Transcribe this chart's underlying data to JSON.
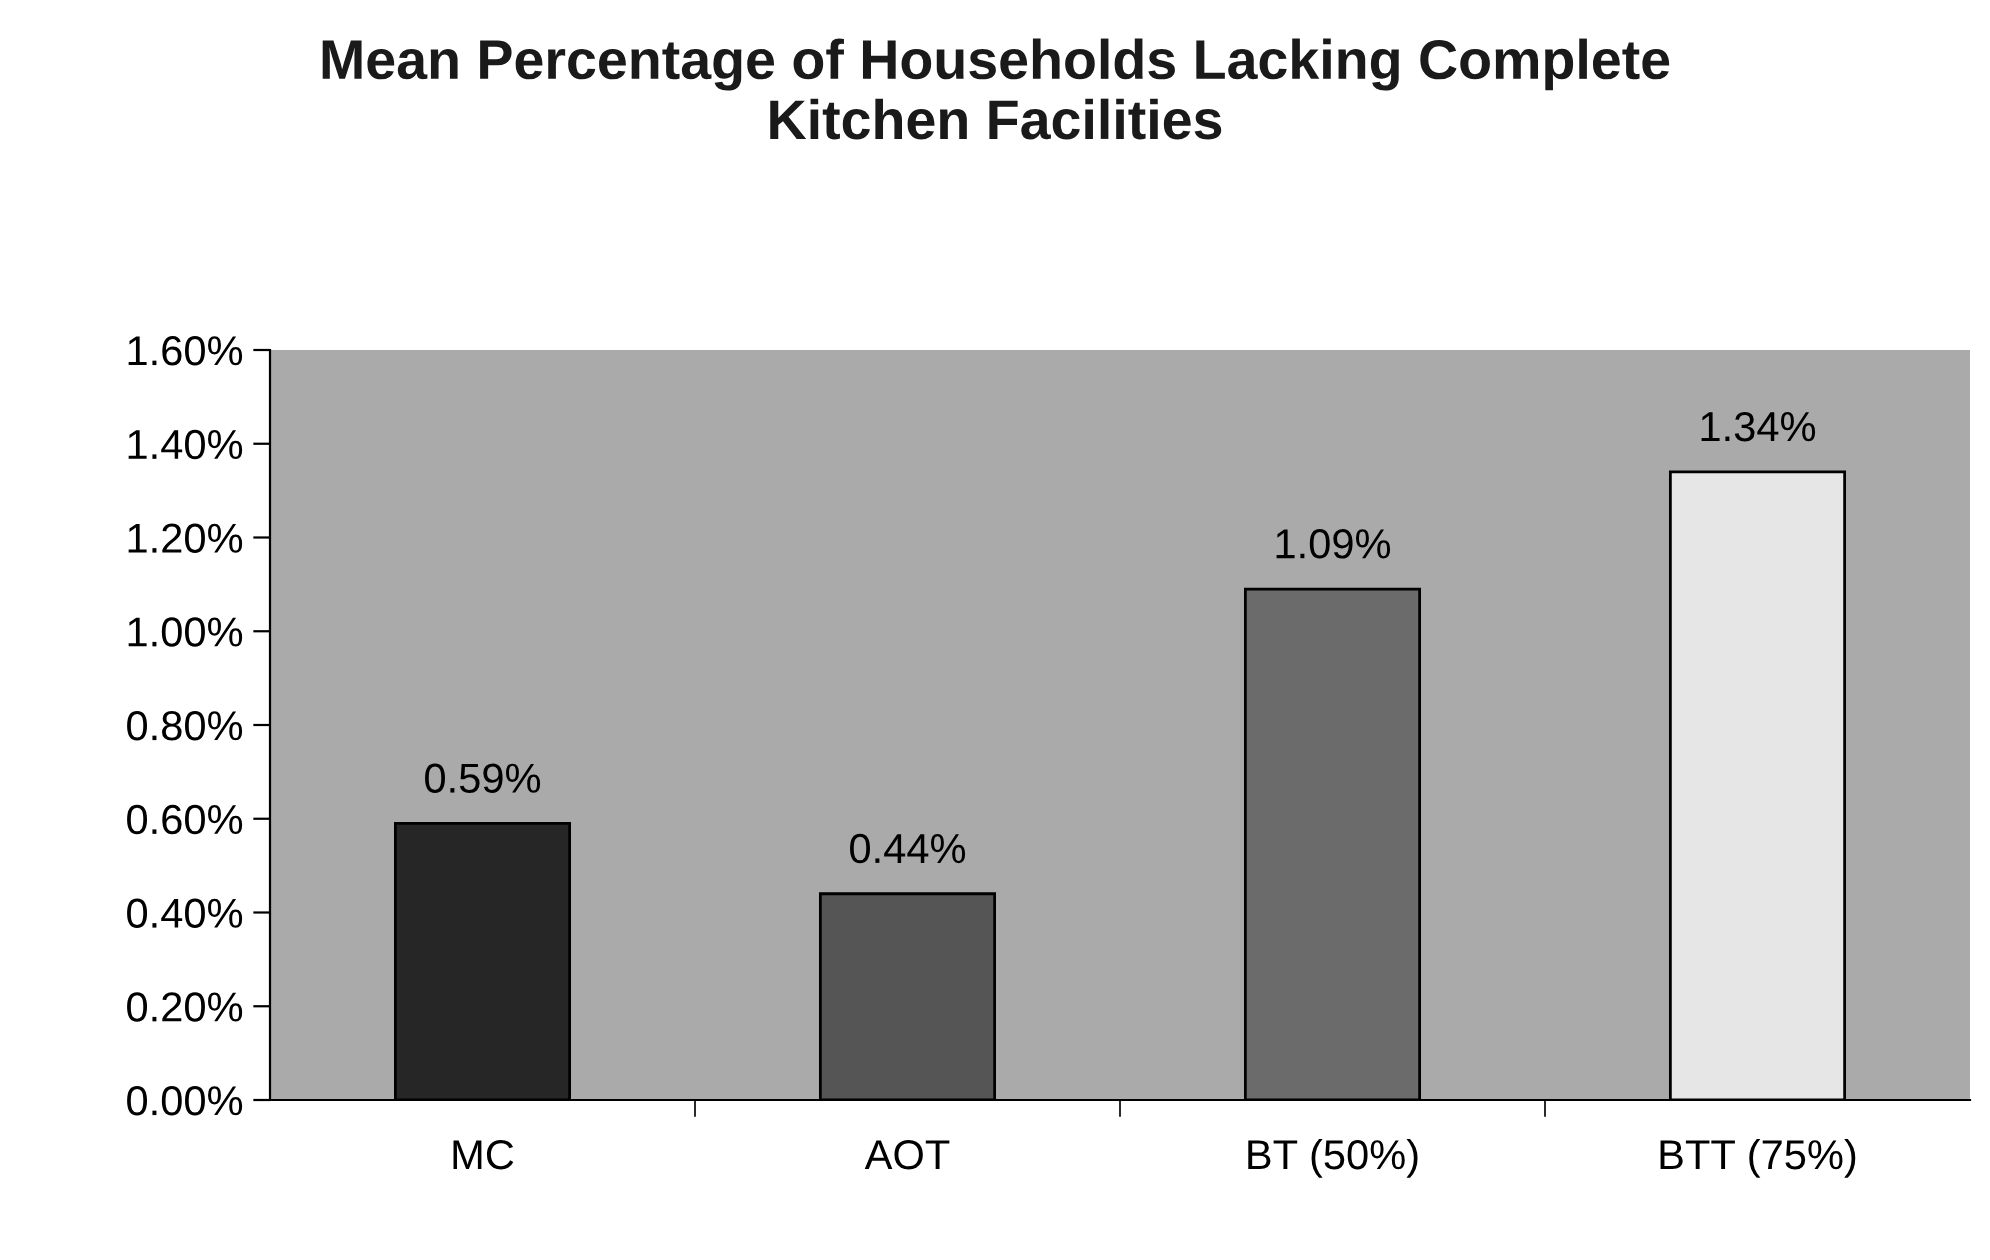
{
  "chart_data": {
    "type": "bar",
    "title": "Mean Percentage of Households Lacking Complete\nKitchen Facilities",
    "categories": [
      "MC",
      "AOT",
      "BT (50%)",
      "BTT (75%)"
    ],
    "values": [
      0.59,
      0.44,
      1.09,
      1.34
    ],
    "colors": [
      "#262626",
      "#555555",
      "#6b6b6b",
      "#e6e6e6"
    ],
    "value_labels": [
      "0.59%",
      "0.44%",
      "1.09%",
      "1.34%"
    ],
    "ylim": [
      0,
      1.6
    ],
    "yticks": [
      {
        "value": 0,
        "label": "0.00%"
      },
      {
        "value": 0.2,
        "label": "0.20%"
      },
      {
        "value": 0.4,
        "label": "0.40%"
      },
      {
        "value": 0.6,
        "label": "0.60%"
      },
      {
        "value": 0.8,
        "label": "0.80%"
      },
      {
        "value": 1.0,
        "label": "1.00%"
      },
      {
        "value": 1.2,
        "label": "1.20%"
      },
      {
        "value": 1.4,
        "label": "1.40%"
      },
      {
        "value": 1.6,
        "label": "1.60%"
      }
    ],
    "grid": false,
    "legend": false
  }
}
